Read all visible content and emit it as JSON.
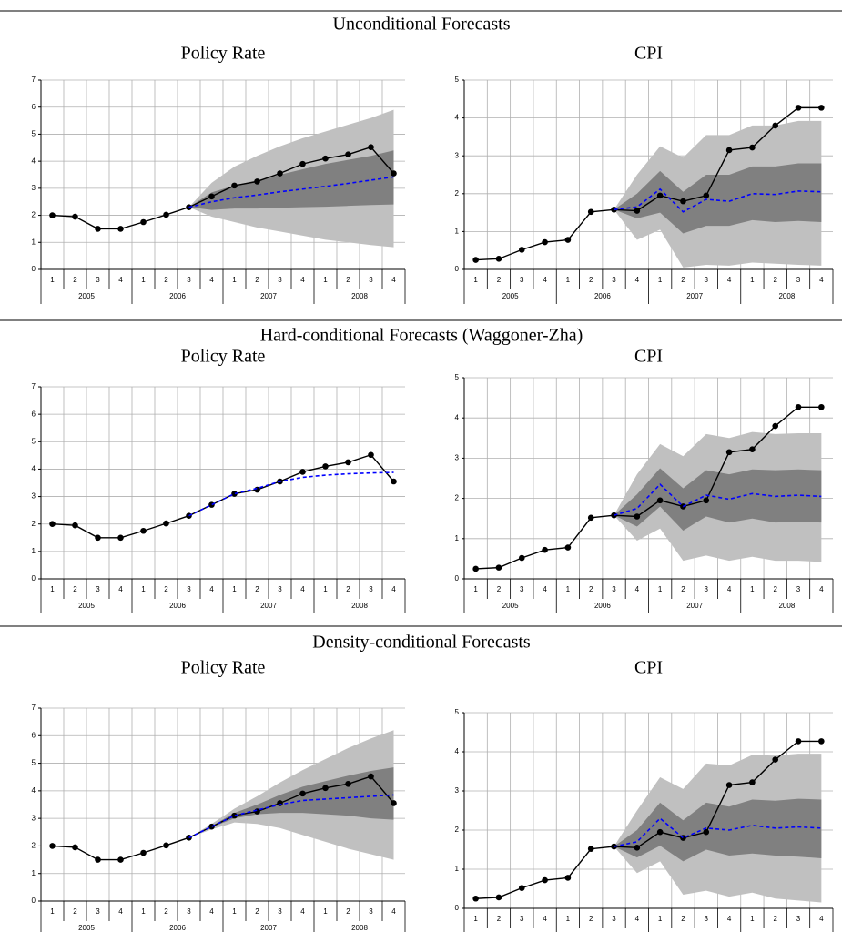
{
  "section_titles": [
    "Unconditional Forecasts",
    "Hard-conditional Forecasts (Waggoner-Zha)",
    "Density-conditional Forecasts"
  ],
  "chart_data": [
    {
      "type": "line",
      "title": "Policy Rate",
      "categories": [
        "1",
        "2",
        "3",
        "4",
        "1",
        "2",
        "3",
        "4",
        "1",
        "2",
        "3",
        "4",
        "1",
        "2",
        "3",
        "4"
      ],
      "groups": [
        "2005",
        "2006",
        "2007",
        "2008"
      ],
      "ylim": [
        0,
        7
      ],
      "yticks": [
        0,
        1,
        2,
        3,
        4,
        5,
        6,
        7
      ],
      "grid": true,
      "bands": [
        {
          "color": "#c0c0c0",
          "lower": [
            null,
            null,
            null,
            null,
            null,
            null,
            2.3,
            1.95,
            1.75,
            1.55,
            1.4,
            1.25,
            1.1,
            1.0,
            0.9,
            0.82
          ],
          "upper": [
            null,
            null,
            null,
            null,
            null,
            null,
            2.3,
            3.2,
            3.8,
            4.2,
            4.55,
            4.85,
            5.1,
            5.35,
            5.6,
            5.9
          ]
        },
        {
          "color": "#808080",
          "lower": [
            null,
            null,
            null,
            null,
            null,
            null,
            2.3,
            2.2,
            2.25,
            2.25,
            2.28,
            2.3,
            2.32,
            2.35,
            2.38,
            2.4
          ],
          "upper": [
            null,
            null,
            null,
            null,
            null,
            null,
            2.3,
            2.85,
            3.1,
            3.3,
            3.5,
            3.7,
            3.9,
            4.05,
            4.2,
            4.4
          ]
        }
      ],
      "series": [
        {
          "color": "#000000",
          "marker": true,
          "values": [
            2.0,
            1.95,
            1.5,
            1.5,
            1.75,
            2.02,
            2.3,
            2.7,
            3.1,
            3.25,
            3.55,
            3.9,
            4.1,
            4.25,
            4.52,
            3.55
          ]
        },
        {
          "color": "#0000ff",
          "dashed": true,
          "values": [
            null,
            null,
            null,
            null,
            null,
            null,
            2.3,
            2.5,
            2.65,
            2.75,
            2.87,
            2.97,
            3.07,
            3.18,
            3.3,
            3.42
          ]
        }
      ]
    },
    {
      "type": "line",
      "title": "CPI",
      "categories": [
        "1",
        "2",
        "3",
        "4",
        "1",
        "2",
        "3",
        "4",
        "1",
        "2",
        "3",
        "4",
        "1",
        "2",
        "3",
        "4"
      ],
      "groups": [
        "2005",
        "2006",
        "2007",
        "2008"
      ],
      "ylim": [
        0,
        5
      ],
      "yticks": [
        0,
        1,
        2,
        3,
        4,
        5
      ],
      "grid": true,
      "bands": [
        {
          "color": "#c0c0c0",
          "lower": [
            null,
            null,
            null,
            null,
            null,
            null,
            1.58,
            0.78,
            1.05,
            0.05,
            0.12,
            0.1,
            0.18,
            0.15,
            0.12,
            0.1
          ],
          "upper": [
            null,
            null,
            null,
            null,
            null,
            null,
            1.58,
            2.5,
            3.25,
            2.95,
            3.55,
            3.55,
            3.8,
            3.8,
            3.92,
            3.92
          ]
        },
        {
          "color": "#808080",
          "lower": [
            null,
            null,
            null,
            null,
            null,
            null,
            1.58,
            1.35,
            1.5,
            0.95,
            1.15,
            1.15,
            1.3,
            1.25,
            1.28,
            1.25
          ],
          "upper": [
            null,
            null,
            null,
            null,
            null,
            null,
            1.58,
            2.0,
            2.6,
            2.05,
            2.5,
            2.5,
            2.72,
            2.72,
            2.8,
            2.8
          ]
        }
      ],
      "series": [
        {
          "color": "#000000",
          "marker": true,
          "values": [
            0.25,
            0.28,
            0.52,
            0.72,
            0.78,
            1.52,
            1.58,
            1.55,
            1.95,
            1.8,
            1.95,
            3.15,
            3.22,
            3.8,
            4.27,
            4.27
          ]
        },
        {
          "color": "#0000ff",
          "dashed": true,
          "values": [
            null,
            null,
            null,
            null,
            null,
            null,
            1.58,
            1.65,
            2.12,
            1.52,
            1.85,
            1.8,
            2.0,
            1.98,
            2.07,
            2.05
          ]
        }
      ]
    },
    {
      "type": "line",
      "title": "Policy Rate",
      "categories": [
        "1",
        "2",
        "3",
        "4",
        "1",
        "2",
        "3",
        "4",
        "1",
        "2",
        "3",
        "4",
        "1",
        "2",
        "3",
        "4"
      ],
      "groups": [
        "2005",
        "2006",
        "2007",
        "2008"
      ],
      "ylim": [
        0,
        7
      ],
      "yticks": [
        0,
        1,
        2,
        3,
        4,
        5,
        6,
        7
      ],
      "grid": true,
      "bands": [],
      "series": [
        {
          "color": "#000000",
          "marker": true,
          "values": [
            2.0,
            1.95,
            1.5,
            1.5,
            1.75,
            2.02,
            2.3,
            2.7,
            3.1,
            3.25,
            3.55,
            3.9,
            4.1,
            4.25,
            4.52,
            3.55
          ]
        },
        {
          "color": "#0000ff",
          "dashed": true,
          "values": [
            null,
            null,
            null,
            null,
            null,
            null,
            2.3,
            2.7,
            3.1,
            3.3,
            3.55,
            3.7,
            3.78,
            3.83,
            3.86,
            3.88
          ]
        }
      ]
    },
    {
      "type": "line",
      "title": "CPI",
      "categories": [
        "1",
        "2",
        "3",
        "4",
        "1",
        "2",
        "3",
        "4",
        "1",
        "2",
        "3",
        "4",
        "1",
        "2",
        "3",
        "4"
      ],
      "groups": [
        "2005",
        "2006",
        "2007",
        "2008"
      ],
      "ylim": [
        0,
        5
      ],
      "yticks": [
        0,
        1,
        2,
        3,
        4,
        5
      ],
      "grid": true,
      "bands": [
        {
          "color": "#c0c0c0",
          "lower": [
            null,
            null,
            null,
            null,
            null,
            null,
            1.58,
            0.95,
            1.25,
            0.45,
            0.58,
            0.45,
            0.55,
            0.45,
            0.45,
            0.42
          ],
          "upper": [
            null,
            null,
            null,
            null,
            null,
            null,
            1.58,
            2.6,
            3.35,
            3.05,
            3.6,
            3.5,
            3.65,
            3.6,
            3.62,
            3.62
          ]
        },
        {
          "color": "#808080",
          "lower": [
            null,
            null,
            null,
            null,
            null,
            null,
            1.58,
            1.3,
            1.8,
            1.2,
            1.55,
            1.4,
            1.5,
            1.4,
            1.42,
            1.4
          ],
          "upper": [
            null,
            null,
            null,
            null,
            null,
            null,
            1.58,
            2.1,
            2.75,
            2.25,
            2.7,
            2.6,
            2.72,
            2.7,
            2.72,
            2.7
          ]
        }
      ],
      "series": [
        {
          "color": "#000000",
          "marker": true,
          "values": [
            0.25,
            0.28,
            0.52,
            0.72,
            0.78,
            1.52,
            1.58,
            1.55,
            1.95,
            1.8,
            1.95,
            3.15,
            3.22,
            3.8,
            4.27,
            4.27
          ]
        },
        {
          "color": "#0000ff",
          "dashed": true,
          "values": [
            null,
            null,
            null,
            null,
            null,
            null,
            1.58,
            1.75,
            2.35,
            1.8,
            2.08,
            1.98,
            2.12,
            2.05,
            2.08,
            2.05
          ]
        }
      ]
    },
    {
      "type": "line",
      "title": "Policy Rate",
      "categories": [
        "1",
        "2",
        "3",
        "4",
        "1",
        "2",
        "3",
        "4",
        "1",
        "2",
        "3",
        "4",
        "1",
        "2",
        "3",
        "4"
      ],
      "groups": [
        "2005",
        "2006",
        "2007",
        "2008"
      ],
      "ylim": [
        0,
        7
      ],
      "yticks": [
        0,
        1,
        2,
        3,
        4,
        5,
        6,
        7
      ],
      "grid": true,
      "bands": [
        {
          "color": "#c0c0c0",
          "lower": [
            null,
            null,
            null,
            null,
            null,
            null,
            2.3,
            2.6,
            2.85,
            2.8,
            2.65,
            2.4,
            2.15,
            1.9,
            1.7,
            1.5
          ],
          "upper": [
            null,
            null,
            null,
            null,
            null,
            null,
            2.3,
            2.8,
            3.35,
            3.8,
            4.3,
            4.75,
            5.15,
            5.55,
            5.9,
            6.2
          ]
        },
        {
          "color": "#808080",
          "lower": [
            null,
            null,
            null,
            null,
            null,
            null,
            2.3,
            2.68,
            3.0,
            3.15,
            3.2,
            3.2,
            3.15,
            3.1,
            3.0,
            2.95
          ],
          "upper": [
            null,
            null,
            null,
            null,
            null,
            null,
            2.3,
            2.72,
            3.2,
            3.5,
            3.85,
            4.15,
            4.35,
            4.55,
            4.72,
            4.85
          ]
        }
      ],
      "series": [
        {
          "color": "#000000",
          "marker": true,
          "values": [
            2.0,
            1.95,
            1.5,
            1.5,
            1.75,
            2.02,
            2.3,
            2.7,
            3.1,
            3.25,
            3.55,
            3.9,
            4.1,
            4.25,
            4.52,
            3.55
          ]
        },
        {
          "color": "#0000ff",
          "dashed": true,
          "values": [
            null,
            null,
            null,
            null,
            null,
            null,
            2.3,
            2.7,
            3.1,
            3.3,
            3.5,
            3.65,
            3.7,
            3.75,
            3.8,
            3.85
          ]
        }
      ]
    },
    {
      "type": "line",
      "title": "CPI",
      "categories": [
        "1",
        "2",
        "3",
        "4",
        "1",
        "2",
        "3",
        "4",
        "1",
        "2",
        "3",
        "4",
        "1",
        "2",
        "3",
        "4"
      ],
      "groups": [
        "2005",
        "2006",
        "2007",
        "2008"
      ],
      "ylim": [
        0,
        5
      ],
      "yticks": [
        0,
        1,
        2,
        3,
        4,
        5
      ],
      "grid": true,
      "bands": [
        {
          "color": "#c0c0c0",
          "lower": [
            null,
            null,
            null,
            null,
            null,
            null,
            1.58,
            0.9,
            1.2,
            0.35,
            0.45,
            0.3,
            0.4,
            0.25,
            0.2,
            0.15
          ],
          "upper": [
            null,
            null,
            null,
            null,
            null,
            null,
            1.58,
            2.5,
            3.35,
            3.05,
            3.7,
            3.65,
            3.92,
            3.9,
            3.95,
            3.95
          ]
        },
        {
          "color": "#808080",
          "lower": [
            null,
            null,
            null,
            null,
            null,
            null,
            1.58,
            1.3,
            1.6,
            1.2,
            1.5,
            1.35,
            1.4,
            1.35,
            1.32,
            1.28
          ],
          "upper": [
            null,
            null,
            null,
            null,
            null,
            null,
            1.58,
            2.0,
            2.7,
            2.25,
            2.7,
            2.6,
            2.78,
            2.75,
            2.8,
            2.78
          ]
        }
      ],
      "series": [
        {
          "color": "#000000",
          "marker": true,
          "values": [
            0.25,
            0.28,
            0.52,
            0.72,
            0.78,
            1.52,
            1.58,
            1.55,
            1.95,
            1.8,
            1.95,
            3.15,
            3.22,
            3.8,
            4.27,
            4.27
          ]
        },
        {
          "color": "#0000ff",
          "dashed": true,
          "values": [
            null,
            null,
            null,
            null,
            null,
            null,
            1.58,
            1.7,
            2.3,
            1.8,
            2.05,
            2.0,
            2.12,
            2.05,
            2.08,
            2.05
          ]
        }
      ]
    }
  ]
}
